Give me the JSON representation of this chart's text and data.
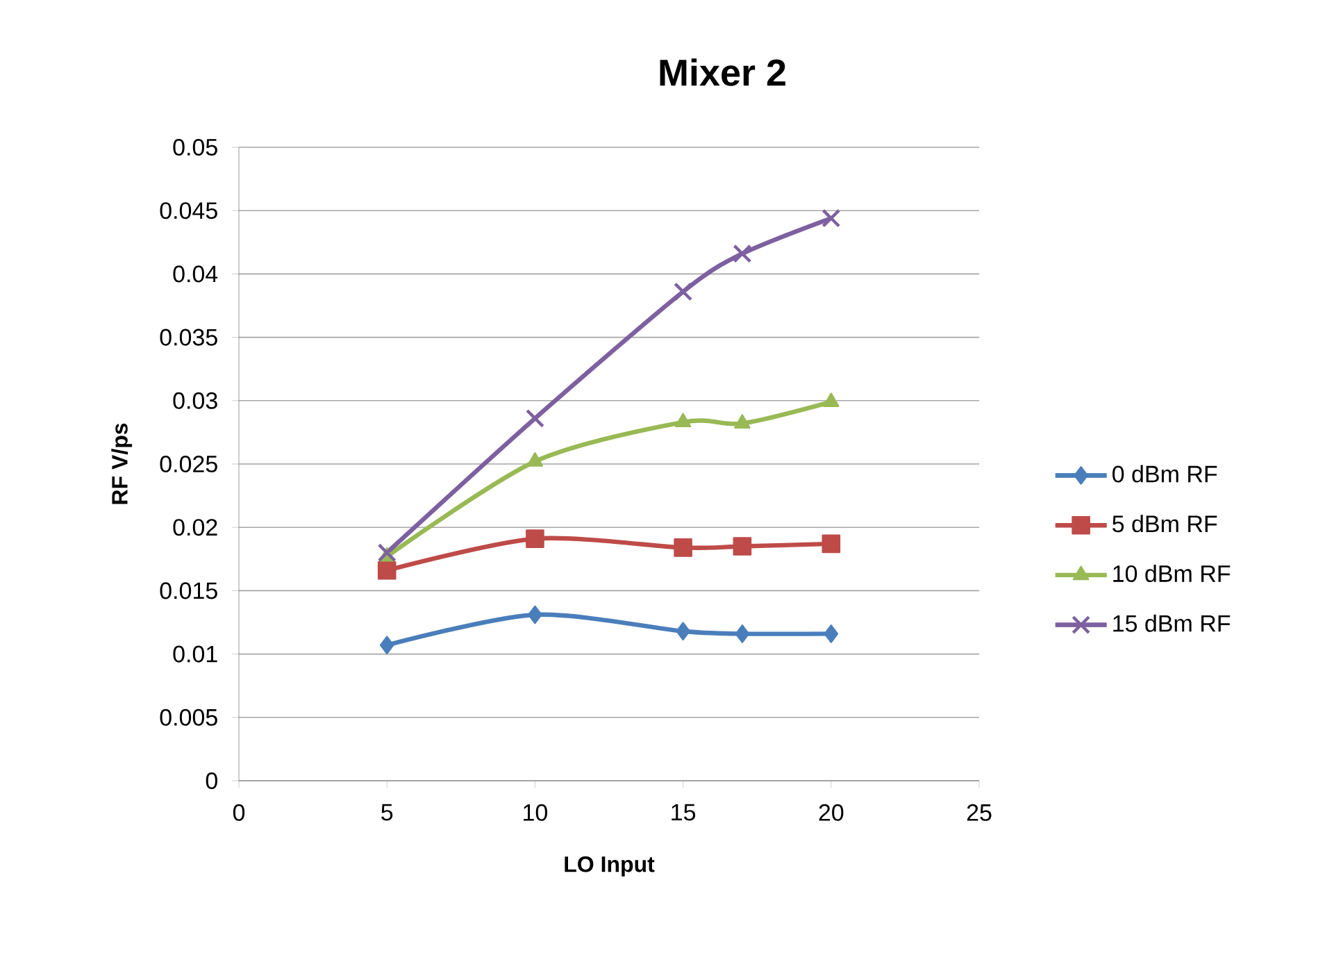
{
  "chart_data": {
    "type": "line",
    "title": "Mixer 2",
    "xlabel": "LO Input",
    "ylabel": "RF V/ps",
    "x": [
      5,
      10,
      15,
      17,
      20
    ],
    "series": [
      {
        "name": "0 dBm RF",
        "color": "#4a7ebb",
        "marker": "diamond",
        "values": [
          0.0107,
          0.0131,
          0.0118,
          0.0116,
          0.0116
        ]
      },
      {
        "name": "5 dBm RF",
        "color": "#be4b48",
        "marker": "square",
        "values": [
          0.0166,
          0.0191,
          0.0184,
          0.0185,
          0.0187
        ]
      },
      {
        "name": "10 dBm RF",
        "color": "#98b954",
        "marker": "triangle",
        "values": [
          0.0177,
          0.0252,
          0.0283,
          0.0282,
          0.0299
        ]
      },
      {
        "name": "15 dBm RF",
        "color": "#7d60a0",
        "marker": "cross",
        "values": [
          0.018,
          0.0286,
          0.0386,
          0.0416,
          0.0444
        ]
      }
    ],
    "xlim": [
      0,
      25
    ],
    "xticks": [
      0,
      5,
      10,
      15,
      20,
      25
    ],
    "ylim": [
      0,
      0.05
    ],
    "yticks": [
      0,
      0.005,
      0.01,
      0.015,
      0.02,
      0.025,
      0.03,
      0.035,
      0.04,
      0.045,
      0.05
    ],
    "grid": "y",
    "legend": "right",
    "line_style": "solid"
  }
}
